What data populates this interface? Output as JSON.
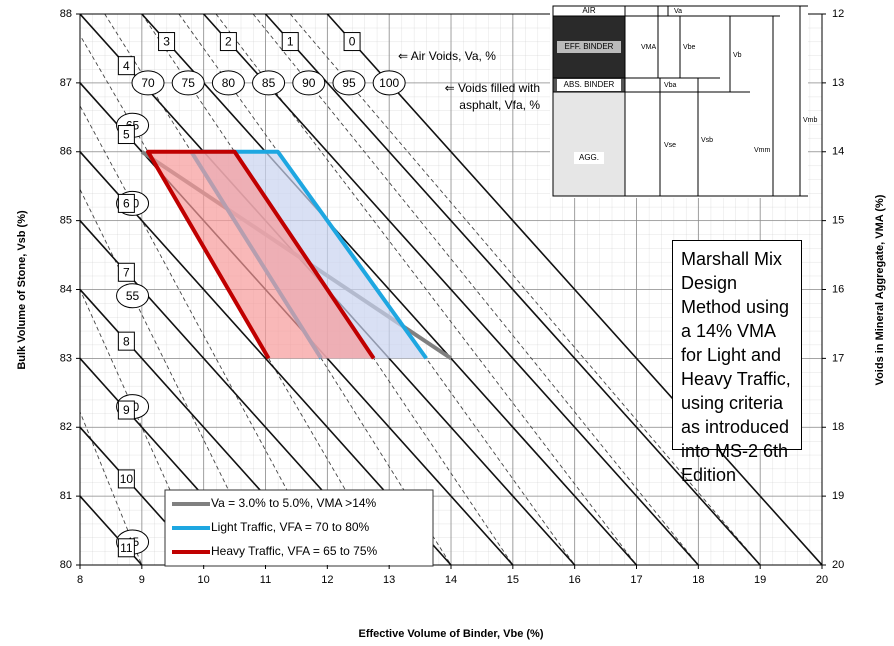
{
  "chart_data": {
    "type": "line",
    "x_label": "Effective Volume of Binder, Vbe (%)",
    "y_label": "Bulk Volume of Stone, Vsb (%)",
    "y2_label": "Voids in Mineral Aggregate, VMA (%)",
    "xlim": [
      8,
      20
    ],
    "xticks": [
      8,
      9,
      10,
      11,
      12,
      13,
      14,
      15,
      16,
      17,
      18,
      19,
      20
    ],
    "ylim": [
      80,
      88
    ],
    "yticks": [
      80,
      81,
      82,
      83,
      84,
      85,
      86,
      87,
      88
    ],
    "y2lim": [
      20,
      12
    ],
    "y2ticks": [
      12,
      13,
      14,
      15,
      16,
      17,
      18,
      19,
      20
    ],
    "grid": true,
    "air_voids": [
      0,
      1,
      2,
      3,
      4,
      5,
      6,
      7,
      8,
      9,
      10,
      11
    ],
    "air_voids_label": "⇐ Air Voids, Va, %",
    "vfa": [
      45,
      50,
      55,
      60,
      65,
      70,
      75,
      80,
      85,
      90,
      95,
      100
    ],
    "vfa_label": [
      "⇐ Voids filled with",
      "asphalt, Vfa, %"
    ],
    "annotation": "Marshall Mix Design Method using a 14% VMA for Light and Heavy Traffic, using criteria as introduced into MS-2 6th Edition",
    "series": [
      {
        "name": "Va = 3.0% to 5.0%, VMA >14%",
        "color": "#808080",
        "x": [
          9.0,
          14.0
        ],
        "values": [
          86.0,
          83.0
        ]
      },
      {
        "name": "Light Traffic, VFA = 70 to 80%",
        "color": "#1ea7e1",
        "fill": "#c9d3f0",
        "x": [
          11.9,
          9.8,
          11.2,
          13.6
        ],
        "values": [
          83.0,
          86.0,
          86.0,
          83.0
        ]
      },
      {
        "name": "Heavy Traffic, VFA = 65 to 75%",
        "color": "#c00000",
        "fill": "#f79a9a",
        "x": [
          11.05,
          9.1,
          10.5,
          12.75
        ],
        "values": [
          83.0,
          86.0,
          86.0,
          83.0
        ]
      }
    ]
  },
  "inset": {
    "phases": [
      "AIR",
      "EFF. BINDER",
      "ABS. BINDER",
      "AGG."
    ],
    "volumes": [
      "Va",
      "VMA",
      "Vbe",
      "Vb",
      "Vba",
      "Vse",
      "Vsb",
      "Vmm",
      "Vmb"
    ]
  }
}
